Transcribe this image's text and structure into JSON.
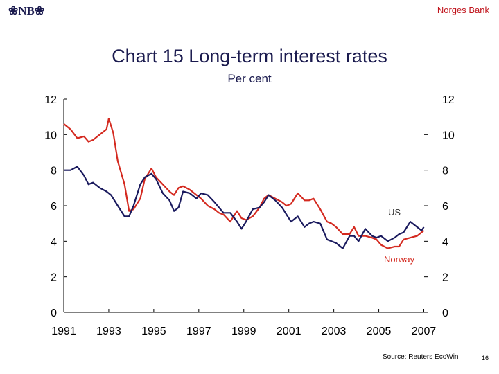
{
  "header": {
    "logo_text": "❀NB❀",
    "bank_name": "Norges Bank"
  },
  "footer": {
    "source": "Source: Reuters EcoWin",
    "page_number": "16"
  },
  "colors": {
    "us": "#1a1a5e",
    "norway": "#d42a20",
    "title": "#1a1a4e"
  },
  "chart_data": {
    "type": "line",
    "title": "Chart 15 Long-term interest rates",
    "subtitle": "Per cent",
    "xlabel": "",
    "ylabel": "",
    "xlim": [
      1991,
      2007.2
    ],
    "ylim": [
      0,
      12
    ],
    "x_ticks": [
      "1991",
      "1993",
      "1995",
      "1997",
      "1999",
      "2001",
      "2003",
      "2005",
      "2007"
    ],
    "y_ticks_left": [
      "0",
      "2",
      "4",
      "6",
      "8",
      "10",
      "12"
    ],
    "y_ticks_right": [
      "0",
      "2",
      "4",
      "6",
      "8",
      "10",
      "12"
    ],
    "grid": false,
    "series": [
      {
        "name": "US",
        "color": "#1a1a5e",
        "x": [
          1991.0,
          1991.3,
          1991.6,
          1991.9,
          1992.1,
          1992.3,
          1992.6,
          1992.9,
          1993.1,
          1993.4,
          1993.7,
          1993.9,
          1994.1,
          1994.4,
          1994.6,
          1994.9,
          1995.1,
          1995.4,
          1995.7,
          1995.9,
          1996.1,
          1996.3,
          1996.6,
          1996.9,
          1997.1,
          1997.4,
          1997.7,
          1997.9,
          1998.1,
          1998.4,
          1998.7,
          1998.9,
          1999.1,
          1999.4,
          1999.7,
          1999.9,
          2000.1,
          2000.4,
          2000.7,
          2000.9,
          2001.1,
          2001.4,
          2001.7,
          2001.9,
          2002.1,
          2002.4,
          2002.7,
          2002.9,
          2003.1,
          2003.4,
          2003.7,
          2003.9,
          2004.1,
          2004.4,
          2004.7,
          2004.9,
          2005.1,
          2005.4,
          2005.7,
          2005.9,
          2006.1,
          2006.4,
          2006.7,
          2006.9,
          2007.0
        ],
        "values": [
          8.0,
          8.0,
          8.2,
          7.7,
          7.2,
          7.3,
          7.0,
          6.8,
          6.6,
          6.0,
          5.4,
          5.4,
          6.0,
          7.2,
          7.6,
          7.8,
          7.5,
          6.7,
          6.3,
          5.7,
          5.9,
          6.8,
          6.7,
          6.4,
          6.7,
          6.6,
          6.2,
          5.9,
          5.6,
          5.6,
          5.1,
          4.7,
          5.1,
          5.8,
          5.9,
          6.2,
          6.6,
          6.3,
          5.9,
          5.5,
          5.1,
          5.4,
          4.8,
          5.0,
          5.1,
          5.0,
          4.1,
          4.0,
          3.9,
          3.6,
          4.3,
          4.3,
          4.0,
          4.7,
          4.3,
          4.2,
          4.3,
          4.0,
          4.2,
          4.4,
          4.5,
          5.1,
          4.8,
          4.6,
          4.8
        ]
      },
      {
        "name": "Norway",
        "color": "#d42a20",
        "x": [
          1991.0,
          1991.3,
          1991.6,
          1991.9,
          1992.1,
          1992.3,
          1992.6,
          1992.9,
          1993.0,
          1993.2,
          1993.4,
          1993.7,
          1993.9,
          1994.1,
          1994.4,
          1994.6,
          1994.9,
          1995.1,
          1995.4,
          1995.7,
          1995.9,
          1996.1,
          1996.3,
          1996.6,
          1996.9,
          1997.1,
          1997.4,
          1997.7,
          1997.9,
          1998.1,
          1998.4,
          1998.7,
          1998.9,
          1999.1,
          1999.4,
          1999.7,
          1999.9,
          2000.1,
          2000.4,
          2000.7,
          2000.9,
          2001.1,
          2001.4,
          2001.7,
          2001.9,
          2002.1,
          2002.4,
          2002.7,
          2002.9,
          2003.1,
          2003.4,
          2003.7,
          2003.9,
          2004.1,
          2004.4,
          2004.7,
          2004.9,
          2005.1,
          2005.4,
          2005.7,
          2005.9,
          2006.1,
          2006.4,
          2006.7,
          2006.9,
          2007.0
        ],
        "values": [
          10.6,
          10.3,
          9.8,
          9.9,
          9.6,
          9.7,
          10.0,
          10.3,
          10.9,
          10.1,
          8.5,
          7.2,
          5.7,
          5.8,
          6.4,
          7.5,
          8.1,
          7.6,
          7.2,
          6.8,
          6.6,
          7.0,
          7.1,
          6.9,
          6.6,
          6.4,
          6.0,
          5.8,
          5.6,
          5.5,
          5.1,
          5.7,
          5.3,
          5.2,
          5.4,
          5.9,
          6.4,
          6.6,
          6.4,
          6.2,
          6.0,
          6.1,
          6.7,
          6.3,
          6.3,
          6.4,
          5.8,
          5.1,
          5.0,
          4.8,
          4.4,
          4.4,
          4.8,
          4.3,
          4.3,
          4.2,
          4.1,
          3.8,
          3.6,
          3.7,
          3.7,
          4.1,
          4.2,
          4.3,
          4.5,
          4.6
        ]
      }
    ],
    "annotations": [
      {
        "text": "US",
        "series": "US"
      },
      {
        "text": "Norway",
        "series": "Norway"
      }
    ]
  }
}
